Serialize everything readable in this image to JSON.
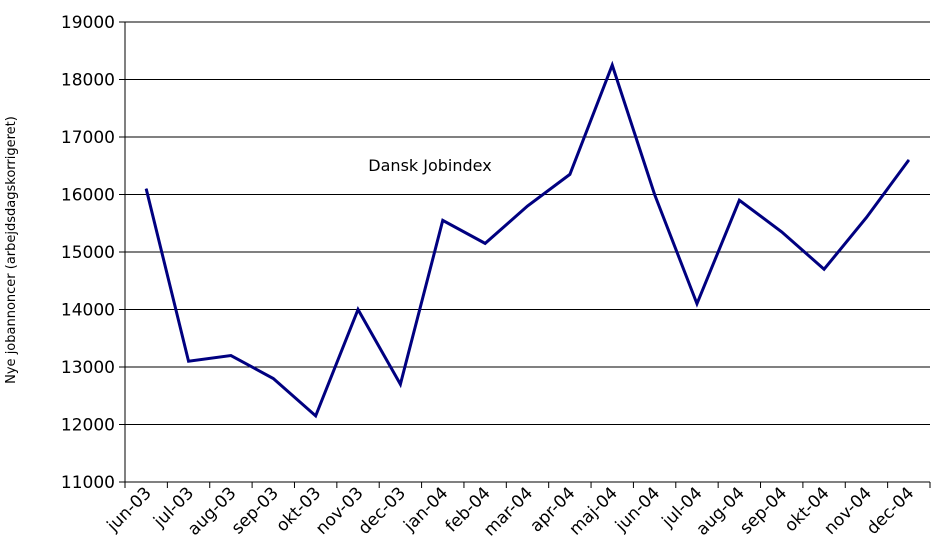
{
  "chart_data": {
    "type": "line",
    "title": "",
    "xlabel": "",
    "ylabel": "Nye jobannoncer (arbejdsdagskorrigeret)",
    "ylim": [
      11000,
      19000
    ],
    "yticks": [
      11000,
      12000,
      13000,
      14000,
      15000,
      16000,
      17000,
      18000,
      19000
    ],
    "grid": true,
    "legend": "none",
    "categories": [
      "jun-03",
      "jul-03",
      "aug-03",
      "sep-03",
      "okt-03",
      "nov-03",
      "dec-03",
      "jan-04",
      "feb-04",
      "mar-04",
      "apr-04",
      "maj-04",
      "jun-04",
      "jul-04",
      "aug-04",
      "sep-04",
      "okt-04",
      "nov-04",
      "dec-04"
    ],
    "annotation": "Dansk Jobindex",
    "series": [
      {
        "name": "Dansk Jobindex",
        "color": "#000080",
        "values": [
          16100,
          13100,
          13200,
          12800,
          12150,
          14000,
          12700,
          15550,
          15150,
          15800,
          16350,
          18250,
          16000,
          14100,
          15900,
          15350,
          14700,
          15600,
          16600
        ]
      }
    ]
  }
}
